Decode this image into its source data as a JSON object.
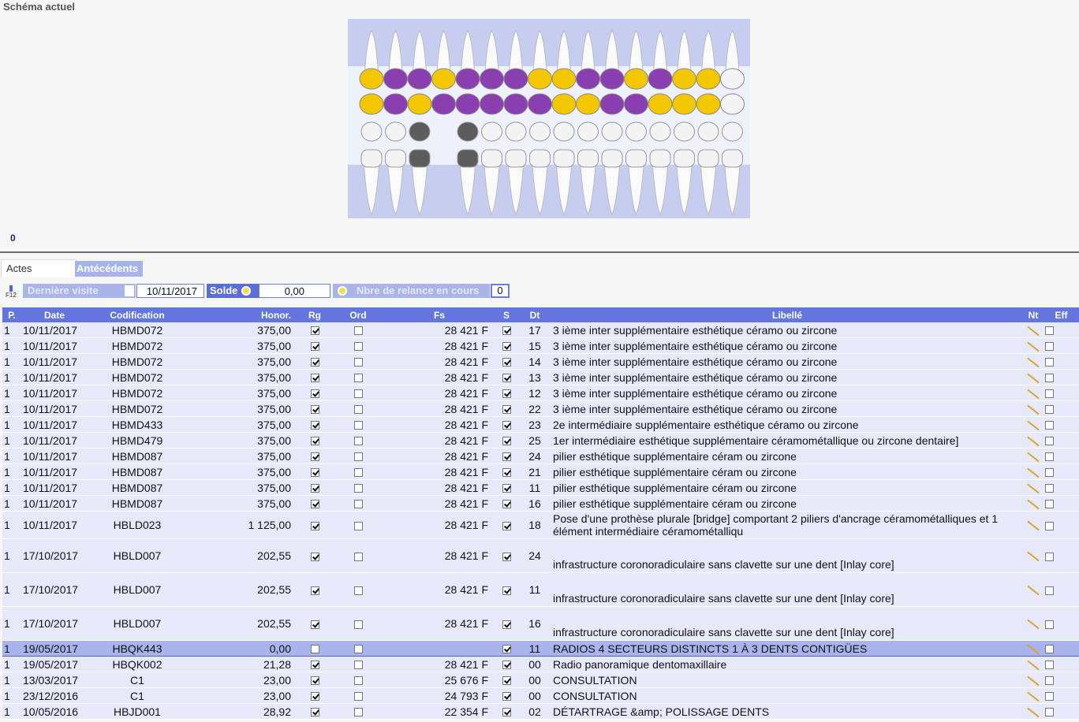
{
  "header": {
    "title": "Schéma actuel",
    "counter": "0"
  },
  "tabs": [
    "Actes",
    "Antécédents"
  ],
  "toolbar": {
    "key": "F12",
    "visit_label": "Dernière visite",
    "visit_date": "10/11/2017",
    "balance_label": "Solde",
    "balance": "0,00",
    "reminder_label": "Nbre de relance en cours",
    "reminder_count": "0"
  },
  "table": {
    "columns": [
      "P.",
      "Date",
      "Codification",
      "Honor.",
      "Rg",
      "Ord",
      "Fs",
      "S",
      "Dt",
      "Libellé",
      "Nt",
      "Eff"
    ],
    "selected_row": 16,
    "rows": [
      [
        "1",
        "10/11/2017",
        "HBMD072",
        "375,00",
        true,
        false,
        "28 421 F",
        true,
        "17",
        "3 ième inter supplémentaire esthétique céramo ou zircone"
      ],
      [
        "1",
        "10/11/2017",
        "HBMD072",
        "375,00",
        true,
        false,
        "28 421 F",
        true,
        "15",
        "3 ième inter supplémentaire esthétique céramo ou zircone"
      ],
      [
        "1",
        "10/11/2017",
        "HBMD072",
        "375,00",
        true,
        false,
        "28 421 F",
        true,
        "14",
        "3 ième inter supplémentaire esthétique céramo ou zircone"
      ],
      [
        "1",
        "10/11/2017",
        "HBMD072",
        "375,00",
        true,
        false,
        "28 421 F",
        true,
        "13",
        "3 ième inter supplémentaire esthétique céramo ou zircone"
      ],
      [
        "1",
        "10/11/2017",
        "HBMD072",
        "375,00",
        true,
        false,
        "28 421 F",
        true,
        "12",
        "3 ième inter supplémentaire esthétique céramo ou zircone"
      ],
      [
        "1",
        "10/11/2017",
        "HBMD072",
        "375,00",
        true,
        false,
        "28 421 F",
        true,
        "22",
        "3 ième inter supplémentaire esthétique céramo ou zircone"
      ],
      [
        "1",
        "10/11/2017",
        "HBMD433",
        "375,00",
        true,
        false,
        "28 421 F",
        true,
        "23",
        " 2e  intermédiaire supplémentaire esthétique céramo ou  zircone"
      ],
      [
        "1",
        "10/11/2017",
        "HBMD479",
        "375,00",
        true,
        false,
        "28 421 F",
        true,
        "25",
        " 1er  intermédiaire esthétique supplémentaire céramométallique ou zircone dentaire]"
      ],
      [
        "1",
        "10/11/2017",
        "HBMD087",
        "375,00",
        true,
        false,
        "28 421 F",
        true,
        "24",
        "pilier esthétique supplémentaire céram ou zircone"
      ],
      [
        "1",
        "10/11/2017",
        "HBMD087",
        "375,00",
        true,
        false,
        "28 421 F",
        true,
        "21",
        "pilier esthétique supplémentaire céram ou zircone"
      ],
      [
        "1",
        "10/11/2017",
        "HBMD087",
        "375,00",
        true,
        false,
        "28 421 F",
        true,
        "11",
        "pilier esthétique supplémentaire céram ou zircone"
      ],
      [
        "1",
        "10/11/2017",
        "HBMD087",
        "375,00",
        true,
        false,
        "28 421 F",
        true,
        "16",
        "pilier esthétique supplémentaire céram ou zircone"
      ],
      [
        "1",
        "10/11/2017",
        "HBLD023",
        "1 125,00",
        true,
        false,
        "28 421 F",
        true,
        "18",
        "Pose d'une prothèse plurale [bridge] comportant 2 piliers d'ancrage céramométalliques et 1 élément intermédiaire céramométalliqu"
      ],
      [
        "1",
        "17/10/2017",
        "HBLD007",
        "202,55",
        true,
        false,
        "28 421 F",
        true,
        "24",
        " infrastructure coronoradiculaire sans clavette sur une dent [Inlay core]"
      ],
      [
        "1",
        "17/10/2017",
        "HBLD007",
        "202,55",
        true,
        false,
        "28 421 F",
        true,
        "11",
        " infrastructure coronoradiculaire sans clavette sur une dent [Inlay core]"
      ],
      [
        "1",
        "17/10/2017",
        "HBLD007",
        "202,55",
        true,
        false,
        "28 421 F",
        true,
        "16",
        " infrastructure coronoradiculaire sans clavette sur une dent [Inlay core]"
      ],
      [
        "1",
        "19/05/2017",
        "HBQK443",
        "0,00",
        false,
        false,
        null,
        true,
        "11",
        "RADIOS 4 SECTEURS DISTINCTS 1 À 3 DENTS CONTIGÜES"
      ],
      [
        "1",
        "19/05/2017",
        "HBQK002",
        "21,28",
        true,
        false,
        "28 421 F",
        true,
        "00",
        "Radio panoramique dentomaxillaire"
      ],
      [
        "1",
        "13/03/2017",
        "C1",
        "23,00",
        true,
        false,
        "25 676 F",
        true,
        "00",
        "CONSULTATION"
      ],
      [
        "1",
        "23/12/2016",
        "C1",
        "23,00",
        true,
        false,
        "24 793 F",
        true,
        "00",
        "CONSULTATION"
      ],
      [
        "1",
        "10/05/2016",
        "HBJD001",
        "28,92",
        true,
        false,
        "22 354 F",
        true,
        "02",
        "DÉTARTRAGE &amp; POLISSAGE DENTS"
      ]
    ]
  }
}
